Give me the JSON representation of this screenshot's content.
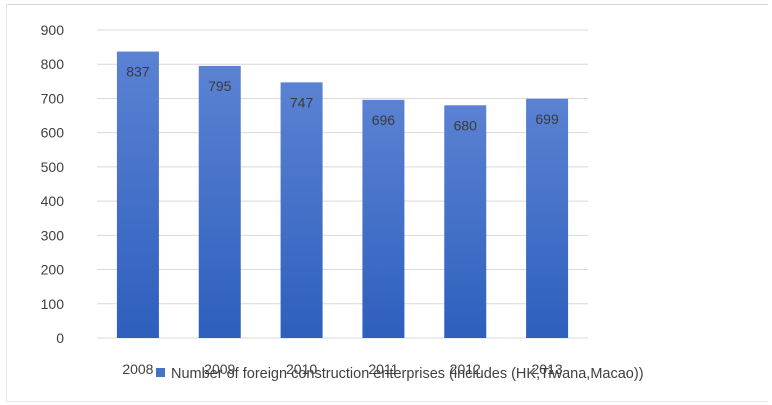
{
  "chart_data": {
    "type": "bar",
    "categories": [
      "2008",
      "2009",
      "2010",
      "2011",
      "2012",
      "2013"
    ],
    "series": [
      {
        "name": "Number of foreign construction enterprises (includes (HK,Tiwana,Macao))",
        "values": [
          837,
          795,
          747,
          696,
          680,
          699
        ]
      }
    ],
    "data_labels": [
      "837",
      "795",
      "747",
      "696",
      "680",
      "699"
    ],
    "y_ticks": [
      "0",
      "100",
      "200",
      "300",
      "400",
      "500",
      "600",
      "700",
      "800",
      "900"
    ],
    "ylim": [
      0,
      900
    ],
    "grid": true,
    "legend": "bottom",
    "colors": {
      "bar_top": "#5b82d3",
      "bar_bottom": "#2e5fbd",
      "legend_marker": "#4472c4"
    }
  }
}
